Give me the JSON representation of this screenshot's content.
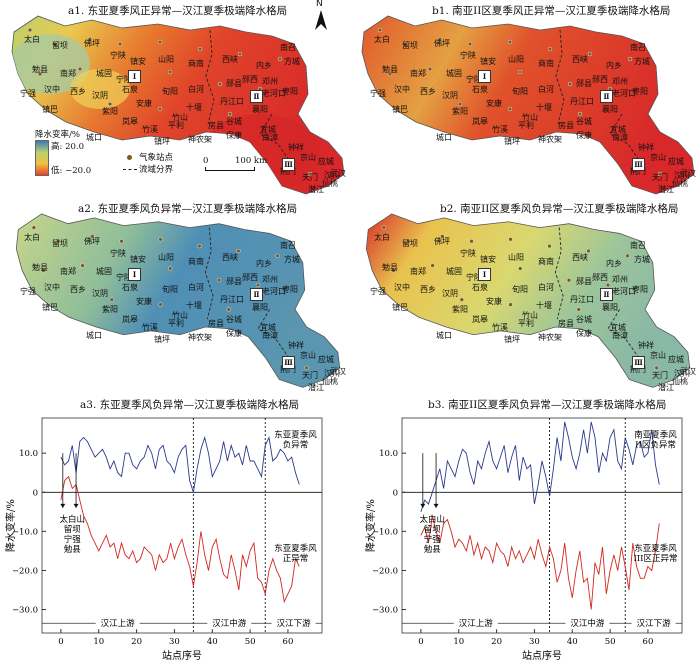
{
  "maps": {
    "a1": {
      "title": "a1. 东亚夏季风正异常—汉江夏季极端降水格局"
    },
    "b1": {
      "title": "b1. 南亚II区夏季风正异常—汉江夏季极端降水格局"
    },
    "a2": {
      "title": "a2. 东亚夏季风负异常—汉江夏季极端降水格局"
    },
    "b2": {
      "title": "b2. 南亚II区夏季风负异常—汉江夏季极端降水格局"
    }
  },
  "legend": {
    "title": "降水变率/%",
    "high": "高: 20.0",
    "low": "低: −20.0",
    "station": "气象站点",
    "boundary": "流域分界",
    "scale_0": "0",
    "scale_100": "100 km"
  },
  "north": "N",
  "zones": [
    "Ⅰ",
    "Ⅱ",
    "Ⅲ"
  ],
  "cities": [
    "太白",
    "留坝",
    "佛坪",
    "宁陕",
    "镇安",
    "山阳",
    "商南",
    "西峡",
    "内乡",
    "方城",
    "南召",
    "勉县",
    "南郑",
    "城固",
    "石泉",
    "汉阴",
    "旬阳",
    "白河",
    "郧县",
    "郧西",
    "邓州",
    "宁强",
    "汉中",
    "西乡",
    "安康",
    "十堰",
    "丹江口",
    "老河口",
    "枣阳",
    "襄阳",
    "镇巴",
    "紫阳",
    "岚皋",
    "平利",
    "竹溪",
    "竹山",
    "房县",
    "谷城",
    "宜城",
    "城口",
    "镇坪",
    "神农架",
    "保康",
    "南漳",
    "钟祥",
    "京山",
    "荆门",
    "天门",
    "应城",
    "汉川",
    "潜江",
    "武汉",
    "仙桃",
    "宁陕"
  ],
  "chart_data": [
    {
      "type": "line",
      "title": "a3. 东亚夏季风负异常—汉江夏季极端降水格局",
      "xlabel": "站点序号",
      "ylabel": "降水变率/%",
      "xlim": [
        -5,
        69
      ],
      "ylim": [
        -36,
        19
      ],
      "xticks": [
        0,
        10,
        20,
        30,
        40,
        50,
        60
      ],
      "yticks": [
        10.0,
        0,
        -10.0,
        -20.0,
        -30.0
      ],
      "ytick_labels": [
        "10.0",
        "0",
        "−10.0",
        "−20.0",
        "−30.0"
      ],
      "dividers": [
        35,
        54
      ],
      "regions": [
        "汉江上游",
        "汉江中游",
        "汉江下游"
      ],
      "series": [
        {
          "name": "东亚夏季风负异常",
          "color": "#2b3b8f",
          "x": [
            0,
            1,
            2,
            3,
            4,
            5,
            6,
            7,
            8,
            9,
            10,
            11,
            12,
            13,
            14,
            15,
            16,
            17,
            18,
            19,
            20,
            21,
            22,
            23,
            24,
            25,
            26,
            27,
            28,
            29,
            30,
            31,
            32,
            33,
            34,
            35,
            36,
            37,
            38,
            39,
            40,
            41,
            42,
            43,
            44,
            45,
            46,
            47,
            48,
            49,
            50,
            51,
            52,
            53,
            54,
            55,
            56,
            57,
            58,
            59,
            60,
            61,
            62,
            63
          ],
          "y": [
            9,
            7,
            8,
            12,
            5,
            13,
            14,
            13,
            11,
            9,
            10,
            11,
            9,
            6,
            8,
            5,
            4,
            10,
            10,
            7,
            6,
            8,
            9,
            12,
            10,
            6,
            11,
            12,
            8,
            7,
            5,
            9,
            11,
            12,
            3,
            0,
            6,
            11,
            14,
            10,
            4,
            6,
            8,
            13,
            8,
            12,
            9,
            10,
            7,
            12,
            8,
            8,
            6,
            4,
            12,
            14,
            8,
            9,
            11,
            10,
            8,
            9,
            5,
            2
          ]
        },
        {
          "name": "东亚夏季风正异常",
          "color": "#d2281e",
          "x": [
            0,
            1,
            2,
            3,
            4,
            5,
            6,
            7,
            8,
            9,
            10,
            11,
            12,
            13,
            14,
            15,
            16,
            17,
            18,
            19,
            20,
            21,
            22,
            23,
            24,
            25,
            26,
            27,
            28,
            29,
            30,
            31,
            32,
            33,
            34,
            35,
            36,
            37,
            38,
            39,
            40,
            41,
            42,
            43,
            44,
            45,
            46,
            47,
            48,
            49,
            50,
            51,
            52,
            53,
            54,
            55,
            56,
            57,
            58,
            59,
            60,
            61,
            62,
            63
          ],
          "y": [
            -2,
            3,
            4,
            1,
            2,
            -2,
            -6,
            -8,
            -11,
            -13,
            -15,
            -13,
            -11,
            -14,
            -13,
            -17,
            -13,
            -16,
            -17,
            -15,
            -18,
            -17,
            -14,
            -15,
            -16,
            -20,
            -16,
            -18,
            -17,
            -13,
            -17,
            -14,
            -12,
            -16,
            -19,
            -24,
            -18,
            -10,
            -16,
            -20,
            -14,
            -12,
            -17,
            -21,
            -22,
            -16,
            -20,
            -25,
            -16,
            -19,
            -15,
            -13,
            -22,
            -23,
            -26,
            -20,
            -17,
            -20,
            -22,
            -28,
            -26,
            -24,
            -17,
            -19
          ]
        }
      ],
      "annotations": {
        "left": "太白山\n留坝\n宁强\n勉县",
        "upper": "东亚夏季风\n负异常",
        "lower": "东亚夏季风\n正异常"
      }
    },
    {
      "type": "line",
      "title": "b3. 南亚II区夏季风负异常—汉江夏季极端降水格局",
      "xlabel": "站点序号",
      "ylabel": "降水变率/%",
      "xlim": [
        -5,
        69
      ],
      "ylim": [
        -36,
        19
      ],
      "xticks": [
        0,
        10,
        20,
        30,
        40,
        50,
        60
      ],
      "yticks": [
        10.0,
        0,
        -10.0,
        -20.0,
        -30.0
      ],
      "ytick_labels": [
        "10.0",
        "0",
        "−10.0",
        "−20.0",
        "−30.0"
      ],
      "dividers": [
        34,
        54
      ],
      "regions": [
        "汉江上游",
        "汉江中游",
        "汉江下游"
      ],
      "series": [
        {
          "name": "南亚夏季风II区负异常",
          "color": "#2b3b8f",
          "x": [
            0,
            1,
            2,
            3,
            4,
            5,
            6,
            7,
            8,
            9,
            10,
            11,
            12,
            13,
            14,
            15,
            16,
            17,
            18,
            19,
            20,
            21,
            22,
            23,
            24,
            25,
            26,
            27,
            28,
            29,
            30,
            31,
            32,
            33,
            34,
            35,
            36,
            37,
            38,
            39,
            40,
            41,
            42,
            43,
            44,
            45,
            46,
            47,
            48,
            49,
            50,
            51,
            52,
            53,
            54,
            55,
            56,
            57,
            58,
            59,
            60,
            61,
            62,
            63
          ],
          "y": [
            -5,
            -2,
            -3,
            0,
            3,
            6,
            1,
            8,
            6,
            4,
            8,
            11,
            10,
            5,
            2,
            8,
            6,
            10,
            13,
            8,
            6,
            9,
            12,
            5,
            9,
            12,
            3,
            9,
            6,
            7,
            -3,
            2,
            8,
            4,
            -1,
            6,
            14,
            8,
            18,
            14,
            9,
            6,
            10,
            16,
            10,
            18,
            14,
            5,
            10,
            8,
            14,
            16,
            8,
            6,
            14,
            11,
            7,
            12,
            13,
            9,
            10,
            16,
            7,
            2
          ]
        },
        {
          "name": "东亚夏季风III区正异常",
          "color": "#d2281e",
          "x": [
            0,
            1,
            2,
            3,
            4,
            5,
            6,
            7,
            8,
            9,
            10,
            11,
            12,
            13,
            14,
            15,
            16,
            17,
            18,
            19,
            20,
            21,
            22,
            23,
            24,
            25,
            26,
            27,
            28,
            29,
            30,
            31,
            32,
            33,
            34,
            35,
            36,
            37,
            38,
            39,
            40,
            41,
            42,
            43,
            44,
            45,
            46,
            47,
            48,
            49,
            50,
            51,
            52,
            53,
            54,
            55,
            56,
            57,
            58,
            59,
            60,
            61,
            62,
            63
          ],
          "y": [
            -11,
            -9,
            -13,
            -6,
            -10,
            -13,
            -8,
            -7,
            -10,
            -14,
            -12,
            -13,
            -15,
            -11,
            -16,
            -13,
            -17,
            -14,
            -15,
            -18,
            -13,
            -15,
            -16,
            -19,
            -14,
            -17,
            -15,
            -18,
            -16,
            -14,
            -17,
            -12,
            -16,
            -19,
            -14,
            -17,
            -23,
            -20,
            -13,
            -22,
            -27,
            -20,
            -15,
            -23,
            -22,
            -30,
            -18,
            -21,
            -14,
            -26,
            -20,
            -16,
            -20,
            -14,
            -19,
            -25,
            -13,
            -19,
            -22,
            -22,
            -19,
            -20,
            -15,
            -8
          ]
        }
      ],
      "annotations": {
        "left": "太白山\n留坝\n宁强\n勉县",
        "upper": "南亚夏季风\nII区负异常",
        "lower": "东亚夏季风\nIII区正异常"
      }
    }
  ]
}
